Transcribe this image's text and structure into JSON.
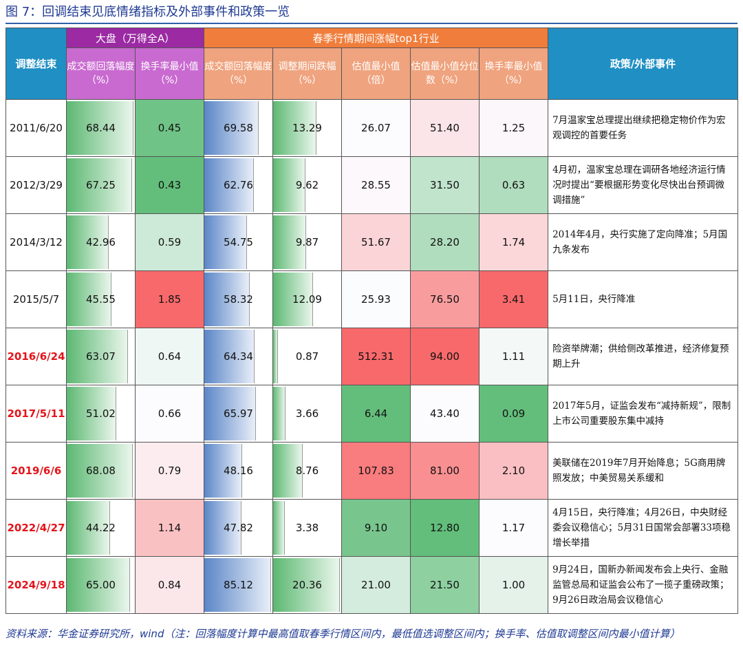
{
  "title": "图 7：回调结束见底情绪指标及外部事件和政策一览",
  "headers": {
    "date": "调整结束",
    "group1": "大盘（万得全A）",
    "group2": "春季行情期间涨幅top1行业",
    "policy": "政策/外部事件",
    "g1_cols": [
      "成交额回落幅度（%）",
      "换手率最小值（%）"
    ],
    "g2_cols": [
      "成交额回落幅度（%）",
      "调整期间跌幅（%）",
      "估值最小值（倍）",
      "估值最小值分位数（%）",
      "换手率最小值（%）"
    ]
  },
  "colors": {
    "header_blue": "#1f8fc4",
    "header_purple": "#9b2aa3",
    "header_orange": "#f07d3b",
    "date_highlight": "#e3141b"
  },
  "rows": [
    {
      "date": "2011/6/20",
      "highlight": false,
      "mkt_vol": "68.44",
      "mkt_turn": "0.45",
      "ind_vol": "69.58",
      "ind_drop": "13.29",
      "ind_pe": "26.07",
      "ind_pct": "51.40",
      "ind_turn": "1.25",
      "policy": "7月温家宝总理提出继续把稳定物价作为宏观调控的首要任务"
    },
    {
      "date": "2012/3/29",
      "highlight": false,
      "mkt_vol": "67.25",
      "mkt_turn": "0.43",
      "ind_vol": "62.76",
      "ind_drop": "9.62",
      "ind_pe": "28.55",
      "ind_pct": "31.50",
      "ind_turn": "0.63",
      "policy": "4月初，温家宝总理在调研各地经济运行情况时提出“要根据形势变化尽快出台预调微调措施”"
    },
    {
      "date": "2014/3/12",
      "highlight": false,
      "mkt_vol": "42.96",
      "mkt_turn": "0.59",
      "ind_vol": "54.75",
      "ind_drop": "9.87",
      "ind_pe": "51.67",
      "ind_pct": "28.20",
      "ind_turn": "1.74",
      "policy": "2014年4月，央行实施了定向降准；5月国九条发布"
    },
    {
      "date": "2015/5/7",
      "highlight": false,
      "mkt_vol": "45.55",
      "mkt_turn": "1.85",
      "ind_vol": "58.32",
      "ind_drop": "12.09",
      "ind_pe": "25.93",
      "ind_pct": "76.50",
      "ind_turn": "3.41",
      "policy": "5月11日，央行降准"
    },
    {
      "date": "2016/6/24",
      "highlight": true,
      "mkt_vol": "63.07",
      "mkt_turn": "0.64",
      "ind_vol": "64.34",
      "ind_drop": "0.87",
      "ind_pe": "512.31",
      "ind_pct": "94.00",
      "ind_turn": "1.11",
      "policy": "险资举牌潮；供给侧改革推进，经济修复预期上升"
    },
    {
      "date": "2017/5/11",
      "highlight": true,
      "mkt_vol": "51.02",
      "mkt_turn": "0.66",
      "ind_vol": "65.97",
      "ind_drop": "3.66",
      "ind_pe": "6.44",
      "ind_pct": "43.40",
      "ind_turn": "0.09",
      "policy": "2017年5月，证监会发布“减持新规”，限制上市公司重要股东集中减持"
    },
    {
      "date": "2019/6/6",
      "highlight": true,
      "mkt_vol": "68.08",
      "mkt_turn": "0.79",
      "ind_vol": "48.16",
      "ind_drop": "8.76",
      "ind_pe": "107.83",
      "ind_pct": "81.00",
      "ind_turn": "2.10",
      "policy": "美联储在2019年7月开始降息；5G商用牌照发放；中美贸易关系缓和"
    },
    {
      "date": "2022/4/27",
      "highlight": true,
      "mkt_vol": "44.22",
      "mkt_turn": "1.14",
      "ind_vol": "47.82",
      "ind_drop": "3.38",
      "ind_pe": "9.10",
      "ind_pct": "12.80",
      "ind_turn": "1.17",
      "policy": "4月15日，央行降准；4月26日，中央财经委会议稳信心；5月31日国常会部署33项稳增长举措"
    },
    {
      "date": "2024/9/18",
      "highlight": true,
      "mkt_vol": "65.00",
      "mkt_turn": "0.84",
      "ind_vol": "85.12",
      "ind_drop": "20.36",
      "ind_pe": "21.00",
      "ind_pct": "21.50",
      "ind_turn": "1.00",
      "policy": "9月24日，国新办新闻发布会上央行、金融监管总局和证监会公布了一揽子重磅政策；9月26日政治局会议稳信心"
    }
  ],
  "footer": "资料来源：华金证券研究所，wind（注：回落幅度计算中最高值取春季行情区间内，最低值选调整区间内；换手率、估值取调整区间内最小值计算）"
}
